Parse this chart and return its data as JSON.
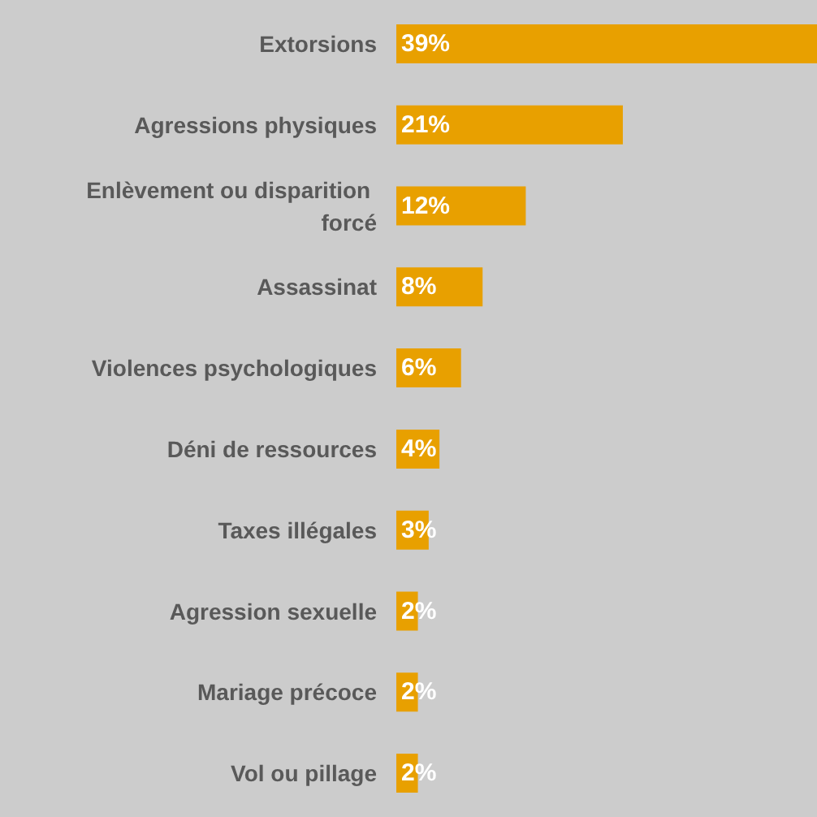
{
  "chart_data": {
    "type": "bar",
    "orientation": "horizontal",
    "categories": [
      "Extorsions",
      "Agressions physiques",
      "Enlèvement ou disparition forcé",
      "Assassinat",
      "Violences psychologiques",
      "Déni de ressources",
      "Taxes illégales",
      "Agression sexuelle",
      "Mariage précoce",
      "Vol ou pillage"
    ],
    "values": [
      39,
      21,
      12,
      8,
      6,
      4,
      3,
      2,
      2,
      2
    ],
    "value_labels": [
      "39%",
      "21%",
      "12%",
      "8%",
      "6%",
      "4%",
      "3%",
      "2%",
      "2%",
      "2%"
    ],
    "color": "#e8a000",
    "tick_labels": "y"
  }
}
